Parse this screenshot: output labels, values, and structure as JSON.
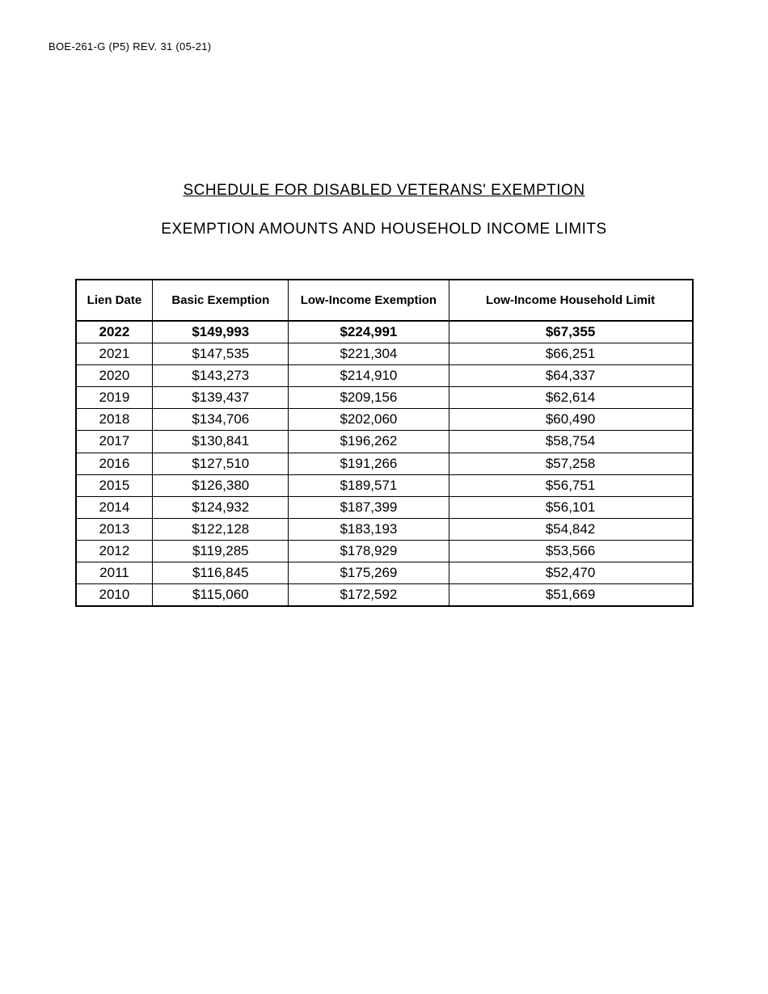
{
  "header": {
    "form_id": "BOE-261-G (P5) REV. 31 (05-21)"
  },
  "titles": {
    "line1": "SCHEDULE FOR DISABLED VETERANS' EXEMPTION",
    "line2": "EXEMPTION AMOUNTS AND HOUSEHOLD INCOME LIMITS"
  },
  "table": {
    "columns": [
      {
        "label": "Lien Date",
        "class": "col-lien"
      },
      {
        "label": "Basic Exemption",
        "class": "col-basic"
      },
      {
        "label": "Low-Income Exemption",
        "class": "col-low"
      },
      {
        "label": "Low-Income Household Limit",
        "class": "col-limit"
      }
    ],
    "rows": [
      {
        "bold": true,
        "cells": [
          "2022",
          "$149,993",
          "$224,991",
          "$67,355"
        ]
      },
      {
        "bold": false,
        "cells": [
          "2021",
          "$147,535",
          "$221,304",
          "$66,251"
        ]
      },
      {
        "bold": false,
        "cells": [
          "2020",
          "$143,273",
          "$214,910",
          "$64,337"
        ]
      },
      {
        "bold": false,
        "cells": [
          "2019",
          "$139,437",
          "$209,156",
          "$62,614"
        ]
      },
      {
        "bold": false,
        "cells": [
          "2018",
          "$134,706",
          "$202,060",
          "$60,490"
        ]
      },
      {
        "bold": false,
        "cells": [
          "2017",
          "$130,841",
          "$196,262",
          "$58,754"
        ]
      },
      {
        "bold": false,
        "cells": [
          "2016",
          "$127,510",
          "$191,266",
          "$57,258"
        ]
      },
      {
        "bold": false,
        "cells": [
          "2015",
          "$126,380",
          "$189,571",
          "$56,751"
        ]
      },
      {
        "bold": false,
        "cells": [
          "2014",
          "$124,932",
          "$187,399",
          "$56,101"
        ]
      },
      {
        "bold": false,
        "cells": [
          "2013",
          "$122,128",
          "$183,193",
          "$54,842"
        ]
      },
      {
        "bold": false,
        "cells": [
          "2012",
          "$119,285",
          "$178,929",
          "$53,566"
        ]
      },
      {
        "bold": false,
        "cells": [
          "2011",
          "$116,845",
          "$175,269",
          "$52,470"
        ]
      },
      {
        "bold": false,
        "cells": [
          "2010",
          "$115,060",
          "$172,592",
          "$51,669"
        ]
      }
    ]
  }
}
